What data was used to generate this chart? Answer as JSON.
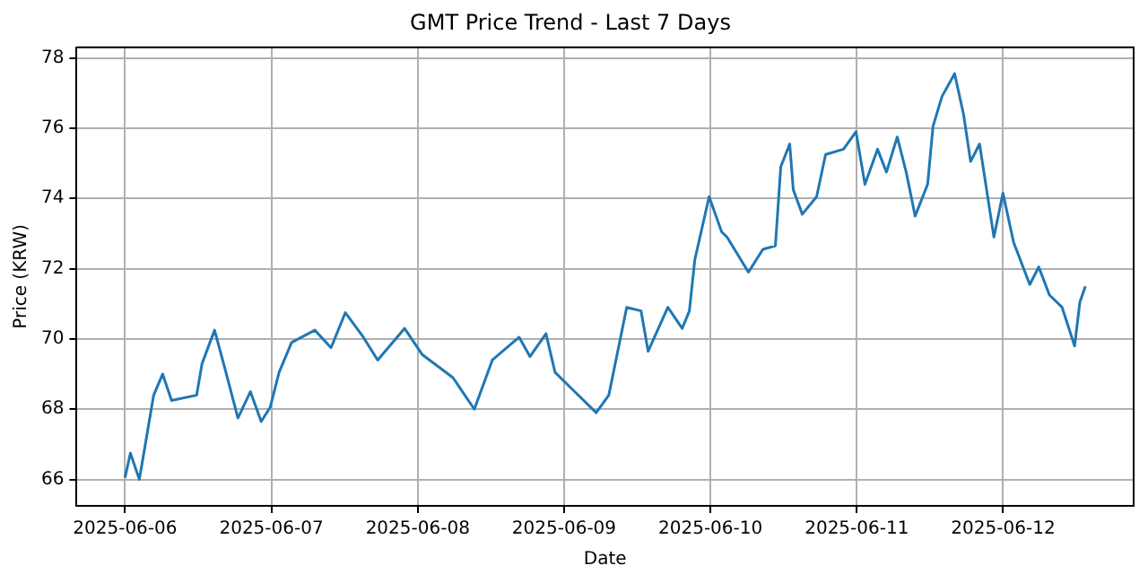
{
  "chart_data": {
    "type": "line",
    "title": "GMT Price Trend - Last 7 Days",
    "xlabel": "Date",
    "ylabel": "Price (KRW)",
    "x": [
      "2025-06-06T00:00",
      "2025-06-06T00:53",
      "2025-06-06T02:21",
      "2025-06-06T04:42",
      "2025-06-06T06:10",
      "2025-06-06T07:38",
      "2025-06-06T11:45",
      "2025-06-06T12:38",
      "2025-06-06T14:41",
      "2025-06-06T16:10",
      "2025-06-06T18:31",
      "2025-06-06T20:34",
      "2025-06-06T22:20",
      "2025-06-06T23:48",
      "2025-06-07T01:16",
      "2025-06-07T03:19",
      "2025-06-07T07:08",
      "2025-06-07T09:47",
      "2025-06-07T12:08",
      "2025-06-07T15:05",
      "2025-06-07T17:26",
      "2025-06-07T21:50",
      "2025-06-08T00:46",
      "2025-06-08T05:46",
      "2025-06-08T09:17",
      "2025-06-08T12:14",
      "2025-06-08T16:38",
      "2025-06-08T18:24",
      "2025-06-08T21:02",
      "2025-06-08T22:31",
      "2025-06-09T01:27",
      "2025-06-09T05:16",
      "2025-06-09T07:20",
      "2025-06-09T10:16",
      "2025-06-09T12:37",
      "2025-06-09T13:47",
      "2025-06-09T17:01",
      "2025-06-09T19:22",
      "2025-06-09T20:33",
      "2025-06-09T21:26",
      "2025-06-09T23:47",
      "2025-06-10T01:50",
      "2025-06-10T02:43",
      "2025-06-10T06:14",
      "2025-06-10T08:36",
      "2025-06-10T10:39",
      "2025-06-10T11:32",
      "2025-06-10T13:00",
      "2025-06-10T13:35",
      "2025-06-10T15:04",
      "2025-06-10T17:25",
      "2025-06-10T18:53",
      "2025-06-10T21:49",
      "2025-06-10T23:52",
      "2025-06-11T01:20",
      "2025-06-11T03:24",
      "2025-06-11T04:52",
      "2025-06-11T06:38",
      "2025-06-11T08:06",
      "2025-06-11T09:34",
      "2025-06-11T11:37",
      "2025-06-11T12:30",
      "2025-06-11T13:58",
      "2025-06-11T16:02",
      "2025-06-11T17:30",
      "2025-06-11T18:40",
      "2025-06-11T20:08",
      "2025-06-11T22:29",
      "2025-06-11T23:58",
      "2025-06-12T01:43",
      "2025-06-12T04:22",
      "2025-06-12T05:50",
      "2025-06-12T07:36",
      "2025-06-12T09:40",
      "2025-06-12T11:43",
      "2025-06-12T12:35",
      "2025-06-12T13:29"
    ],
    "series": [
      {
        "color": "#1f77b4",
        "values": [
          66.05,
          66.75,
          66.0,
          68.4,
          69.0,
          68.25,
          68.4,
          69.3,
          70.25,
          69.3,
          67.75,
          68.5,
          67.65,
          68.05,
          69.05,
          69.9,
          70.25,
          69.75,
          70.75,
          70.05,
          69.4,
          70.3,
          69.55,
          68.9,
          68.0,
          69.4,
          70.05,
          69.5,
          70.15,
          69.05,
          68.55,
          67.9,
          68.4,
          70.9,
          70.8,
          69.65,
          70.9,
          70.3,
          70.8,
          72.25,
          74.05,
          73.05,
          72.9,
          71.9,
          72.55,
          72.65,
          74.9,
          75.55,
          74.25,
          73.55,
          74.05,
          75.25,
          75.4,
          75.9,
          74.4,
          75.4,
          74.75,
          75.75,
          74.75,
          73.5,
          74.4,
          76.05,
          76.9,
          77.55,
          76.4,
          75.05,
          75.55,
          72.9,
          74.15,
          72.75,
          71.55,
          72.05,
          71.25,
          70.9,
          69.8,
          71.05,
          71.5
        ]
      }
    ],
    "xlim": [
      "2025-06-05T16:04",
      "2025-06-12T21:24"
    ],
    "xticks": [
      "2025-06-06",
      "2025-06-07",
      "2025-06-08",
      "2025-06-09",
      "2025-06-10",
      "2025-06-11",
      "2025-06-12"
    ],
    "ylim": [
      65.25,
      78.3
    ],
    "yticks": [
      66,
      68,
      70,
      72,
      74,
      76,
      78
    ],
    "grid": true,
    "legend": false,
    "marker": "none",
    "line_style": "solid"
  }
}
